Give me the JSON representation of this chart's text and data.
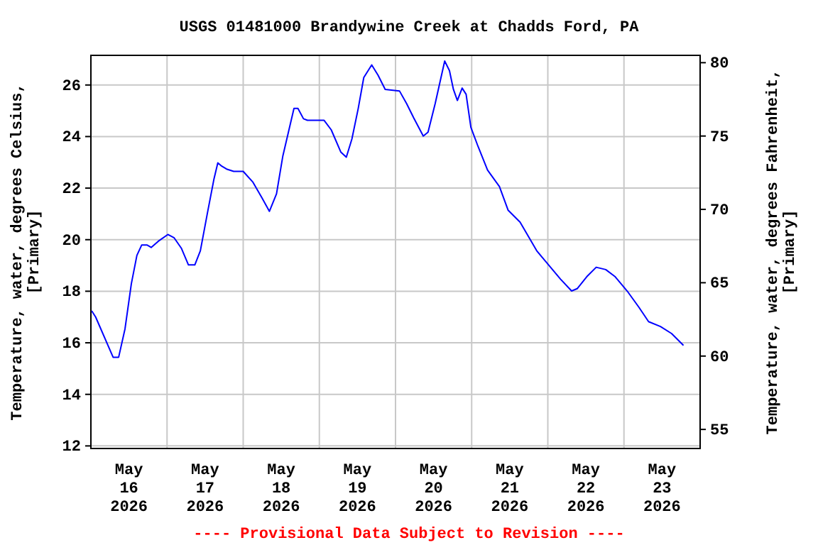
{
  "chart_data": {
    "type": "line",
    "title": "USGS 01481000 Brandywine Creek at Chadds Ford, PA",
    "ylabel": "Temperature, water, degrees Celsius, [Primary]",
    "y2label": "Temperature, water, degrees Fahrenheit, [Primary]",
    "annotations": [
      "---- Provisional Data Subject to Revision ----"
    ],
    "xlim": [
      "2026-05-16T00:00",
      "2026-05-24T00:00"
    ],
    "xticks": [
      {
        "value": "2026-05-16T12:00",
        "label": "May 16 2026"
      },
      {
        "value": "2026-05-17T00:00",
        "label": null
      },
      {
        "value": "2026-05-17T12:00",
        "label": "May 17 2026"
      },
      {
        "value": "2026-05-18T00:00",
        "label": null
      },
      {
        "value": "2026-05-18T12:00",
        "label": "May 18 2026"
      },
      {
        "value": "2026-05-19T00:00",
        "label": null
      },
      {
        "value": "2026-05-19T12:00",
        "label": "May 19 2026"
      },
      {
        "value": "2026-05-20T00:00",
        "label": null
      },
      {
        "value": "2026-05-20T12:00",
        "label": "May 20 2026"
      },
      {
        "value": "2026-05-21T00:00",
        "label": null
      },
      {
        "value": "2026-05-21T12:00",
        "label": "May 21 2026"
      },
      {
        "value": "2026-05-22T00:00",
        "label": null
      },
      {
        "value": "2026-05-22T12:00",
        "label": "May 22 2026"
      },
      {
        "value": "2026-05-23T00:00",
        "label": null
      },
      {
        "value": "2026-05-23T12:00",
        "label": "May 23 2026"
      }
    ],
    "ylim": [
      11.9,
      27.15
    ],
    "yticks": [
      12,
      14,
      16,
      18,
      20,
      22,
      24,
      26
    ],
    "y2lim": [
      53.7,
      80.5
    ],
    "y2ticks": [
      55,
      60,
      65,
      70,
      75,
      80
    ],
    "grid": true,
    "series": [
      {
        "color": "#0000ff",
        "x": [
          "2026-05-16T00:15",
          "2026-05-16T01:30",
          "2026-05-16T07:00",
          "2026-05-16T08:45",
          "2026-05-16T10:45",
          "2026-05-16T12:45",
          "2026-05-16T14:30",
          "2026-05-16T16:00",
          "2026-05-16T17:45",
          "2026-05-16T19:00",
          "2026-05-16T21:15",
          "2026-05-17T00:15",
          "2026-05-17T02:15",
          "2026-05-17T04:30",
          "2026-05-17T06:45",
          "2026-05-17T08:45",
          "2026-05-17T10:30",
          "2026-05-17T12:45",
          "2026-05-17T14:45",
          "2026-05-17T16:00",
          "2026-05-17T17:15",
          "2026-05-17T18:45",
          "2026-05-17T21:00",
          "2026-05-18T00:00",
          "2026-05-18T03:00",
          "2026-05-18T06:00",
          "2026-05-18T08:15",
          "2026-05-18T10:30",
          "2026-05-18T12:30",
          "2026-05-18T14:15",
          "2026-05-18T16:00",
          "2026-05-18T17:15",
          "2026-05-18T19:00",
          "2026-05-18T20:15",
          "2026-05-19T01:30",
          "2026-05-19T03:45",
          "2026-05-19T06:45",
          "2026-05-19T08:30",
          "2026-05-19T10:15",
          "2026-05-19T12:15",
          "2026-05-19T14:00",
          "2026-05-19T16:30",
          "2026-05-19T18:30",
          "2026-05-19T20:45",
          "2026-05-20T01:15",
          "2026-05-20T03:30",
          "2026-05-20T05:45",
          "2026-05-20T08:45",
          "2026-05-20T10:15",
          "2026-05-20T12:30",
          "2026-05-20T15:30",
          "2026-05-20T17:00",
          "2026-05-20T18:15",
          "2026-05-20T19:30",
          "2026-05-20T21:00",
          "2026-05-20T22:15",
          "2026-05-20T23:45",
          "2026-05-21T02:00",
          "2026-05-21T05:00",
          "2026-05-21T08:45",
          "2026-05-21T11:30",
          "2026-05-21T15:15",
          "2026-05-21T20:30",
          "2026-05-22T00:15",
          "2026-05-22T04:00",
          "2026-05-22T07:30",
          "2026-05-22T09:15",
          "2026-05-22T12:15",
          "2026-05-22T15:15",
          "2026-05-22T18:15",
          "2026-05-22T21:15",
          "2026-05-23T01:00",
          "2026-05-23T04:45",
          "2026-05-23T07:45",
          "2026-05-23T11:30",
          "2026-05-23T15:00",
          "2026-05-23T18:45"
        ],
        "values": [
          17.24,
          17.0,
          15.44,
          15.44,
          16.54,
          18.29,
          19.39,
          19.79,
          19.79,
          19.7,
          19.94,
          20.2,
          20.07,
          19.67,
          19.02,
          19.02,
          19.57,
          21.05,
          22.33,
          22.98,
          22.85,
          22.74,
          22.65,
          22.65,
          22.24,
          21.6,
          21.1,
          21.78,
          23.25,
          24.17,
          25.09,
          25.09,
          24.69,
          24.63,
          24.63,
          24.26,
          23.4,
          23.2,
          23.9,
          25.09,
          26.29,
          26.78,
          26.38,
          25.83,
          25.77,
          25.28,
          24.72,
          24.02,
          24.17,
          25.28,
          26.93,
          26.56,
          25.83,
          25.4,
          25.88,
          25.64,
          24.36,
          23.62,
          22.7,
          22.06,
          21.14,
          20.68,
          19.57,
          19.02,
          18.47,
          18.01,
          18.1,
          18.56,
          18.93,
          18.84,
          18.56,
          18.01,
          17.37,
          16.82,
          16.63,
          16.36,
          15.9
        ]
      }
    ]
  }
}
